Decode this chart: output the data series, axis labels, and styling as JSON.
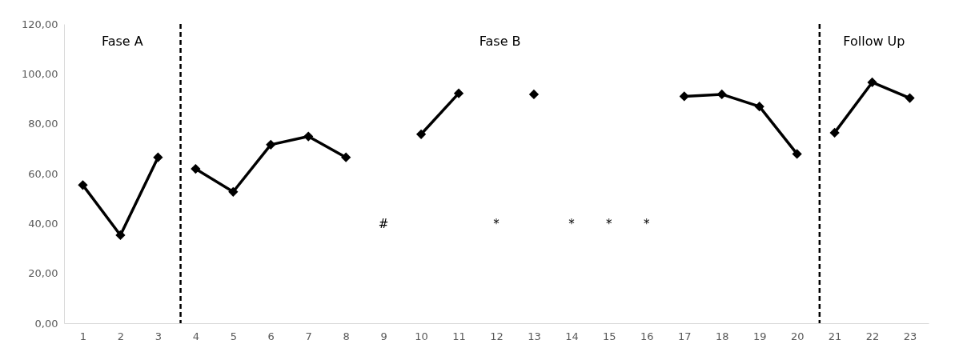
{
  "chart_data": {
    "type": "line",
    "xlim": [
      0.5,
      23.5
    ],
    "xticks": [
      1,
      2,
      3,
      4,
      5,
      6,
      7,
      8,
      9,
      10,
      11,
      12,
      13,
      14,
      15,
      16,
      17,
      18,
      19,
      20,
      21,
      22,
      23
    ],
    "ylim": [
      0,
      120
    ],
    "yticks": [
      {
        "value": 0,
        "label": "0,00"
      },
      {
        "value": 20,
        "label": "20,00"
      },
      {
        "value": 40,
        "label": "40,00"
      },
      {
        "value": 60,
        "label": "60,00"
      },
      {
        "value": 80,
        "label": "80,00"
      },
      {
        "value": 100,
        "label": "100,00"
      },
      {
        "value": 120,
        "label": "120,00"
      }
    ],
    "grid": false,
    "marker": "diamond",
    "line_style": "solid",
    "series": [
      {
        "color": "#000000",
        "x": [
          1,
          2,
          3
        ],
        "values": [
          55.4,
          35.3,
          66.5
        ]
      },
      {
        "color": "#000000",
        "x": [
          4,
          5,
          6,
          7,
          8,
          9,
          10,
          11,
          12,
          13,
          14,
          15,
          16,
          17,
          18,
          19,
          20
        ],
        "values": [
          61.9,
          52.7,
          71.6,
          74.9,
          66.5,
          null,
          75.8,
          92.2,
          null,
          91.8,
          null,
          null,
          null,
          91.0,
          91.8,
          86.9,
          67.9
        ]
      },
      {
        "color": "#000000",
        "x": [
          21,
          22,
          23
        ],
        "values": [
          76.4,
          96.6,
          90.3
        ]
      }
    ],
    "ref_lines": [
      {
        "axis": "x",
        "value": 3.6,
        "label": null,
        "color": "#000000",
        "line_style": "dashed"
      },
      {
        "axis": "x",
        "value": 20.6,
        "label": null,
        "color": "#000000",
        "line_style": "dashed"
      }
    ],
    "annotations": [
      "Fase A",
      "Fase B",
      "Follow Up",
      "#",
      "*",
      "*",
      "*",
      "*"
    ]
  }
}
